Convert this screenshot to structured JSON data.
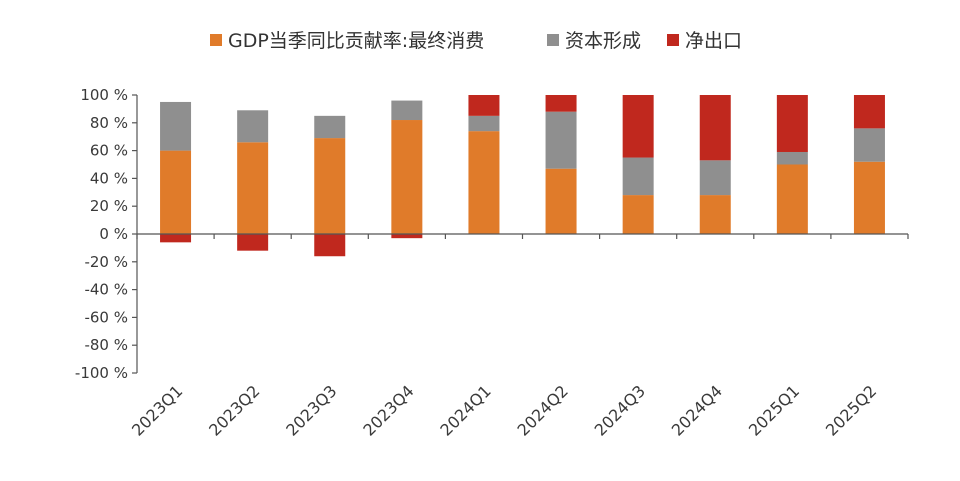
{
  "chart_data": {
    "type": "bar",
    "stacked": true,
    "categories": [
      "2023Q1",
      "2023Q2",
      "2023Q3",
      "2023Q4",
      "2024Q1",
      "2024Q2",
      "2024Q3",
      "2024Q4",
      "2025Q1",
      "2025Q2"
    ],
    "series": [
      {
        "name": "GDP当季同比贡献率:最终消费",
        "color": "#e07b2a",
        "values": [
          60,
          66,
          69,
          82,
          74,
          47,
          28,
          28,
          50,
          52
        ]
      },
      {
        "name": "资本形成",
        "color": "#8f8f8f",
        "values": [
          35,
          23,
          16,
          14,
          11,
          41,
          27,
          25,
          9,
          24
        ]
      },
      {
        "name": "净出口",
        "color": "#c0281e",
        "values": [
          -6,
          -12,
          -16,
          -3,
          15,
          12,
          45,
          47,
          41,
          24
        ]
      }
    ],
    "ylim": [
      -100,
      100
    ],
    "yticks": [
      100,
      80,
      60,
      40,
      20,
      0,
      -20,
      -40,
      -60,
      -80,
      -100
    ],
    "ytick_labels": [
      "100 %",
      "80 %",
      "60 %",
      "40 %",
      "20 %",
      "0 %",
      "-20 %",
      "-40 %",
      "-60 %",
      "-80 %",
      "-100 %"
    ],
    "legend_position": "top-center",
    "grid": false
  }
}
